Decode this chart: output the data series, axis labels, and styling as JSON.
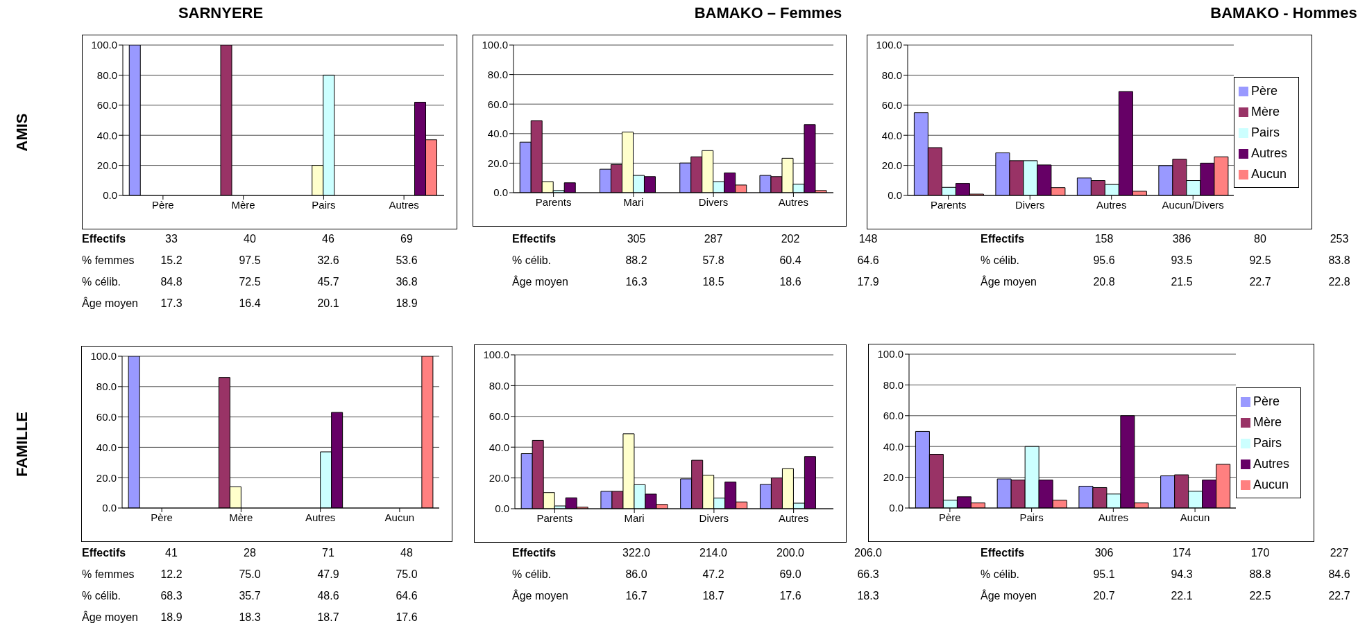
{
  "chart_data": [
    {
      "type": "bar",
      "title": "SARNYERE",
      "ylabel": "AMIS",
      "categories": [
        "Père",
        "Mère",
        "Pairs",
        "Autres"
      ],
      "ylim": [
        0,
        100
      ],
      "yticks": [
        {
          "value": 0,
          "label": "0.0"
        },
        {
          "value": 20,
          "label": "20.0"
        },
        {
          "value": 40,
          "label": "40.0"
        },
        {
          "value": 60,
          "label": "60.0"
        },
        {
          "value": 80,
          "label": "80.0"
        },
        {
          "value": 100,
          "label": "100.0"
        }
      ],
      "grid": "y",
      "series": [
        {
          "color": "#9999ff",
          "values": [
            100,
            0,
            0,
            0
          ]
        },
        {
          "color": "#993366",
          "values": [
            0,
            100,
            0,
            0
          ]
        },
        {
          "color": "#ffffcc",
          "values": [
            0,
            0,
            20,
            0
          ]
        },
        {
          "color": "#ccffff",
          "values": [
            0,
            0,
            80,
            0
          ]
        },
        {
          "color": "#660066",
          "values": [
            0,
            0,
            0,
            62
          ]
        },
        {
          "color": "#ff8080",
          "values": [
            0,
            0,
            0,
            37
          ]
        }
      ],
      "annotations": [
        "Effectifs",
        "33",
        "40",
        "46",
        "69",
        "% femmes",
        "15.2",
        "97.5",
        "32.6",
        "53.6",
        "% célib.",
        "84.8",
        "72.5",
        "45.7",
        "36.8",
        "Âge moyen",
        "17.3",
        "16.4",
        "20.1",
        "18.9"
      ]
    },
    {
      "type": "bar",
      "title": "BAMAKO – Femmes",
      "categories": [
        "Parents",
        "Mari",
        "Divers",
        "Autres"
      ],
      "ylim": [
        0,
        100
      ],
      "yticks": [
        {
          "value": 0,
          "label": "0.0"
        },
        {
          "value": 20,
          "label": "20.0"
        },
        {
          "value": 40,
          "label": "40.0"
        },
        {
          "value": 60,
          "label": "60.0"
        },
        {
          "value": 80,
          "label": "80.0"
        },
        {
          "value": 100,
          "label": "100.0"
        }
      ],
      "grid": "y",
      "series": [
        {
          "color": "#9999ff",
          "values": [
            34.2,
            15.9,
            20.1,
            11.7
          ]
        },
        {
          "color": "#993366",
          "values": [
            48.8,
            19.1,
            24.3,
            10.9
          ]
        },
        {
          "color": "#ffffcc",
          "values": [
            7.5,
            41.1,
            28.5,
            23.3
          ]
        },
        {
          "color": "#ccffff",
          "values": [
            1.5,
            11.7,
            7.5,
            5.7
          ]
        },
        {
          "color": "#660066",
          "values": [
            6.7,
            10.9,
            13.4,
            46.1
          ]
        },
        {
          "color": "#ff8080",
          "values": [
            null,
            null,
            5.2,
            1.5
          ]
        }
      ],
      "annotations": [
        "Effectifs",
        "305",
        "287",
        "202",
        "148",
        "% célib.",
        "88.2",
        "57.8",
        "60.4",
        "64.6",
        "Âge moyen",
        "16.3",
        "18.5",
        "18.6",
        "17.9"
      ]
    },
    {
      "type": "bar",
      "title": "BAMAKO - Hommes",
      "categories": [
        "Parents",
        "Divers",
        "Autres",
        "Aucun/Divers"
      ],
      "ylim": [
        0,
        100
      ],
      "yticks": [
        {
          "value": 0,
          "label": "0.0"
        },
        {
          "value": 20,
          "label": "20.0"
        },
        {
          "value": 40,
          "label": "40.0"
        },
        {
          "value": 60,
          "label": "60.0"
        },
        {
          "value": 80,
          "label": "80.0"
        },
        {
          "value": 100,
          "label": "100.0"
        }
      ],
      "grid": "y",
      "legend": "right",
      "series": [
        {
          "name": "Père",
          "color": "#9999ff",
          "values": [
            55,
            28.3,
            11.6,
            19.8
          ]
        },
        {
          "name": "Mère",
          "color": "#993366",
          "values": [
            31.8,
            23.1,
            9.9,
            24.1
          ]
        },
        {
          "name": "Pairs",
          "color": "#ccffff",
          "values": [
            5.4,
            23.1,
            7.3,
            9.9
          ]
        },
        {
          "name": "Autres",
          "color": "#660066",
          "values": [
            8,
            20.3,
            69.1,
            21.5
          ]
        },
        {
          "name": "Aucun",
          "color": "#ff8080",
          "values": [
            0.9,
            5.2,
            2.8,
            25.7
          ]
        }
      ],
      "annotations": [
        "Effectifs",
        "158",
        "386",
        "80",
        "253",
        "% célib.",
        "95.6",
        "93.5",
        "92.5",
        "83.8",
        "Âge moyen",
        "20.8",
        "21.5",
        "22.7",
        "22.8"
      ]
    },
    {
      "type": "bar",
      "ylabel": "FAMILLE",
      "categories": [
        "Père",
        "Mère",
        "Autres",
        "Aucun"
      ],
      "ylim": [
        0,
        100
      ],
      "yticks": [
        {
          "value": 0,
          "label": "0.0"
        },
        {
          "value": 20,
          "label": "20.0"
        },
        {
          "value": 40,
          "label": "40.0"
        },
        {
          "value": 60,
          "label": "60.0"
        },
        {
          "value": 80,
          "label": "80.0"
        },
        {
          "value": 100,
          "label": "100.0"
        }
      ],
      "grid": "y",
      "series": [
        {
          "color": "#9999ff",
          "values": [
            100,
            0,
            0,
            0
          ]
        },
        {
          "color": "#993366",
          "values": [
            0,
            86,
            0,
            0
          ]
        },
        {
          "color": "#ffffcc",
          "values": [
            0,
            14,
            0,
            0
          ]
        },
        {
          "color": "#ccffff",
          "values": [
            0,
            0,
            37,
            0
          ]
        },
        {
          "color": "#660066",
          "values": [
            0,
            0,
            63,
            0
          ]
        },
        {
          "color": "#ff8080",
          "values": [
            0,
            0,
            0,
            100
          ]
        }
      ],
      "annotations": [
        "Effectifs",
        "41",
        "28",
        "71",
        "48",
        "% femmes",
        "12.2",
        "75.0",
        "47.9",
        "75.0",
        "% célib.",
        "68.3",
        "35.7",
        "48.6",
        "64.6",
        "Âge moyen",
        "18.9",
        "18.3",
        "18.7",
        "17.6"
      ]
    },
    {
      "type": "bar",
      "categories": [
        "Parents",
        "Mari",
        "Divers",
        "Autres"
      ],
      "ylim": [
        0,
        100
      ],
      "yticks": [
        {
          "value": 0,
          "label": "0.0"
        },
        {
          "value": 20,
          "label": "20.0"
        },
        {
          "value": 40,
          "label": "40.0"
        },
        {
          "value": 60,
          "label": "60.0"
        },
        {
          "value": 80,
          "label": "80.0"
        },
        {
          "value": 100,
          "label": "100.0"
        }
      ],
      "grid": "y",
      "series": [
        {
          "color": "#9999ff",
          "values": [
            35.8,
            11.3,
            19.4,
            15.8
          ]
        },
        {
          "color": "#993366",
          "values": [
            44.4,
            11.3,
            31.5,
            20
          ]
        },
        {
          "color": "#ffffcc",
          "values": [
            10.5,
            48.7,
            21.8,
            26.1
          ]
        },
        {
          "color": "#ccffff",
          "values": [
            1.8,
            15.6,
            6.9,
            3.6
          ]
        },
        {
          "color": "#660066",
          "values": [
            7.1,
            9.5,
            17.4,
            33.9
          ]
        },
        {
          "color": "#ff8080",
          "values": [
            1,
            2.8,
            4.4,
            null
          ]
        }
      ],
      "annotations": [
        "Effectifs",
        "322.0",
        "214.0",
        "200.0",
        "206.0",
        "% célib.",
        "86.0",
        "47.2",
        "69.0",
        "66.3",
        "Âge moyen",
        "16.7",
        "18.7",
        "17.6",
        "18.3"
      ]
    },
    {
      "type": "bar",
      "categories": [
        "Père",
        "Pairs",
        "Autres",
        "Aucun"
      ],
      "ylim": [
        0,
        100
      ],
      "yticks": [
        {
          "value": 0,
          "label": "0.0"
        },
        {
          "value": 20,
          "label": "20.0"
        },
        {
          "value": 40,
          "label": "40.0"
        },
        {
          "value": 60,
          "label": "60.0"
        },
        {
          "value": 80,
          "label": "80.0"
        },
        {
          "value": 100,
          "label": "100.0"
        }
      ],
      "grid": "y",
      "legend": "right",
      "series": [
        {
          "name": "Père",
          "color": "#9999ff",
          "values": [
            49.8,
            18.9,
            14.2,
            20.9
          ]
        },
        {
          "name": "Mère",
          "color": "#993366",
          "values": [
            34.9,
            18.2,
            13.3,
            21.6
          ]
        },
        {
          "name": "Pairs",
          "color": "#ccffff",
          "values": [
            5.1,
            40,
            9.1,
            10.9
          ]
        },
        {
          "name": "Autres",
          "color": "#660066",
          "values": [
            7.3,
            18.2,
            60,
            18.2
          ]
        },
        {
          "name": "Aucun",
          "color": "#ff8080",
          "values": [
            3.3,
            5.1,
            3.3,
            28.4
          ]
        }
      ],
      "annotations": [
        "Effectifs",
        "306",
        "174",
        "170",
        "227",
        "% célib.",
        "95.1",
        "94.3",
        "88.8",
        "84.6",
        "Âge moyen",
        "20.7",
        "22.1",
        "22.5",
        "22.7"
      ]
    }
  ]
}
